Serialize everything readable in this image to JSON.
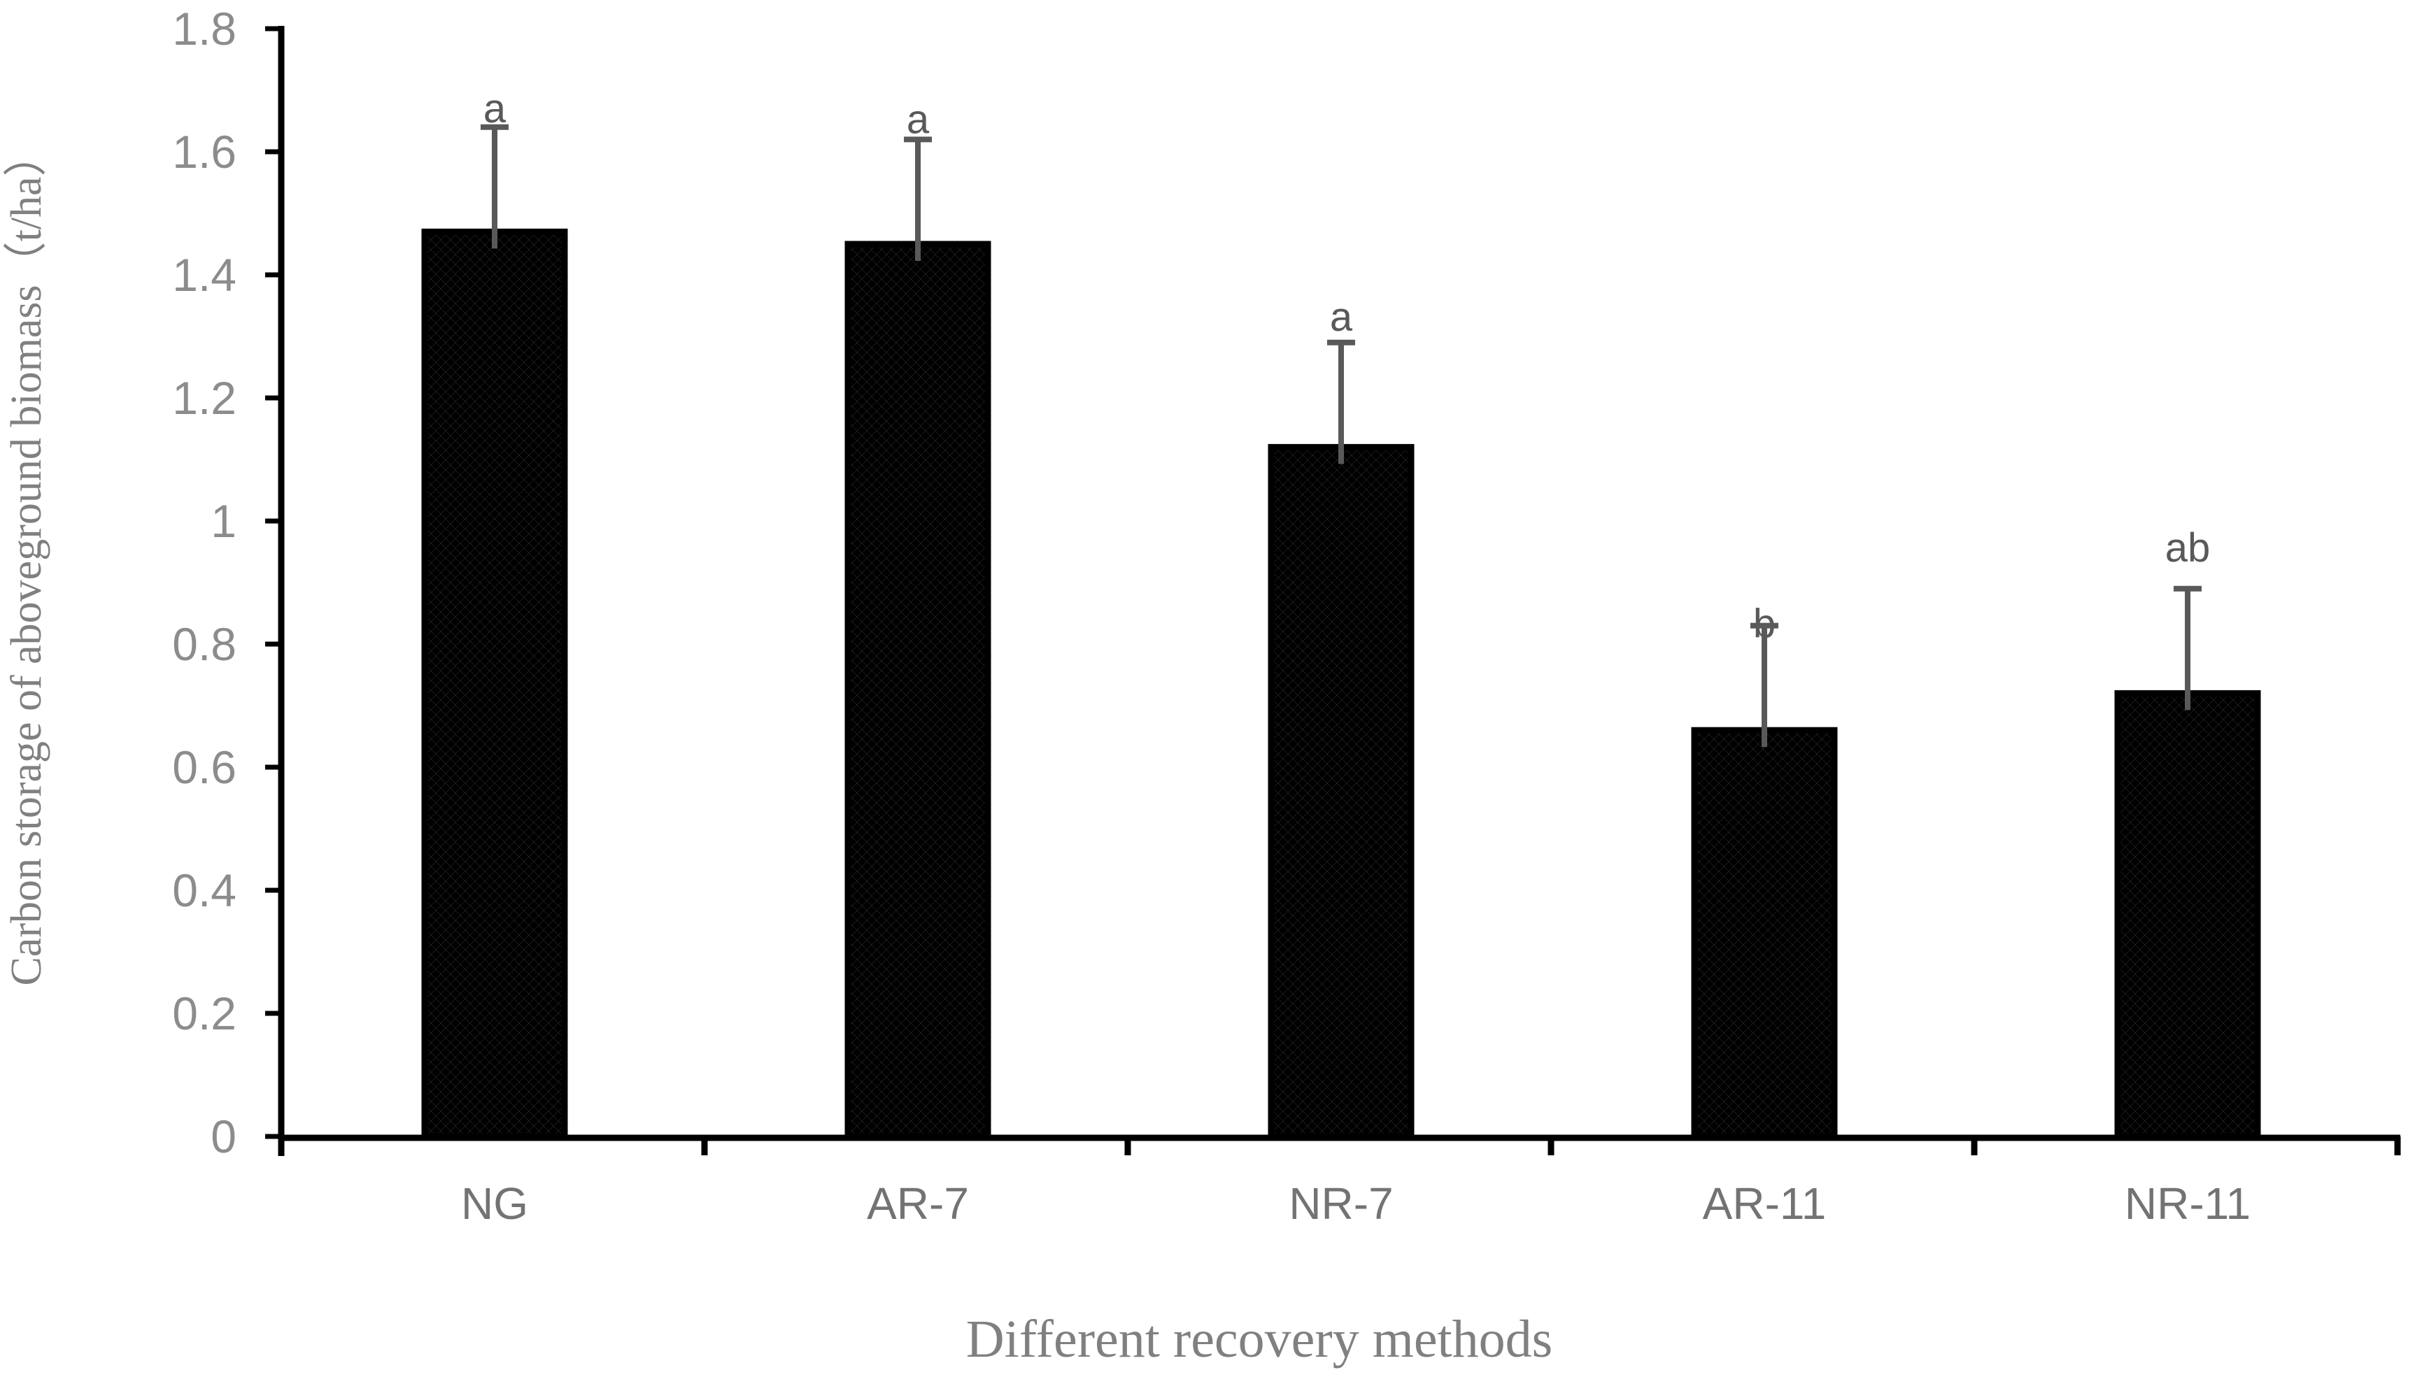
{
  "figure": {
    "background": "#ffffff"
  },
  "chart_data": {
    "type": "bar",
    "title": "",
    "xlabel": "Different recovery methods",
    "ylabel": "Carbon storage of aboveground biomass（t/ha）",
    "categories": [
      "NG",
      "AR-7",
      "NR-7",
      "AR-11",
      "NR-11"
    ],
    "values": [
      1.47,
      1.45,
      1.12,
      0.66,
      0.72
    ],
    "errors_plus": [
      0.17,
      0.17,
      0.17,
      0.17,
      0.17
    ],
    "sig_letters": [
      "a",
      "a",
      "a",
      "b",
      "ab"
    ],
    "ylim": [
      0,
      1.8
    ],
    "ytick_step": 0.2,
    "ytick_labels": [
      "0",
      "0.2",
      "0.4",
      "0.6",
      "0.8",
      "1",
      "1.2",
      "1.4",
      "1.6",
      "1.8"
    ],
    "grid": false,
    "legend": null,
    "bar_fill": "black-white-diagonal-checker-pattern",
    "bar_edge_color": "#000000",
    "axis_color": "#000000",
    "error_bar_color": "#595959",
    "letter_color": "#595959",
    "tick_label_color": "#8c8c8c",
    "category_label_color": "#737373",
    "axis_title_color": "#808080"
  }
}
